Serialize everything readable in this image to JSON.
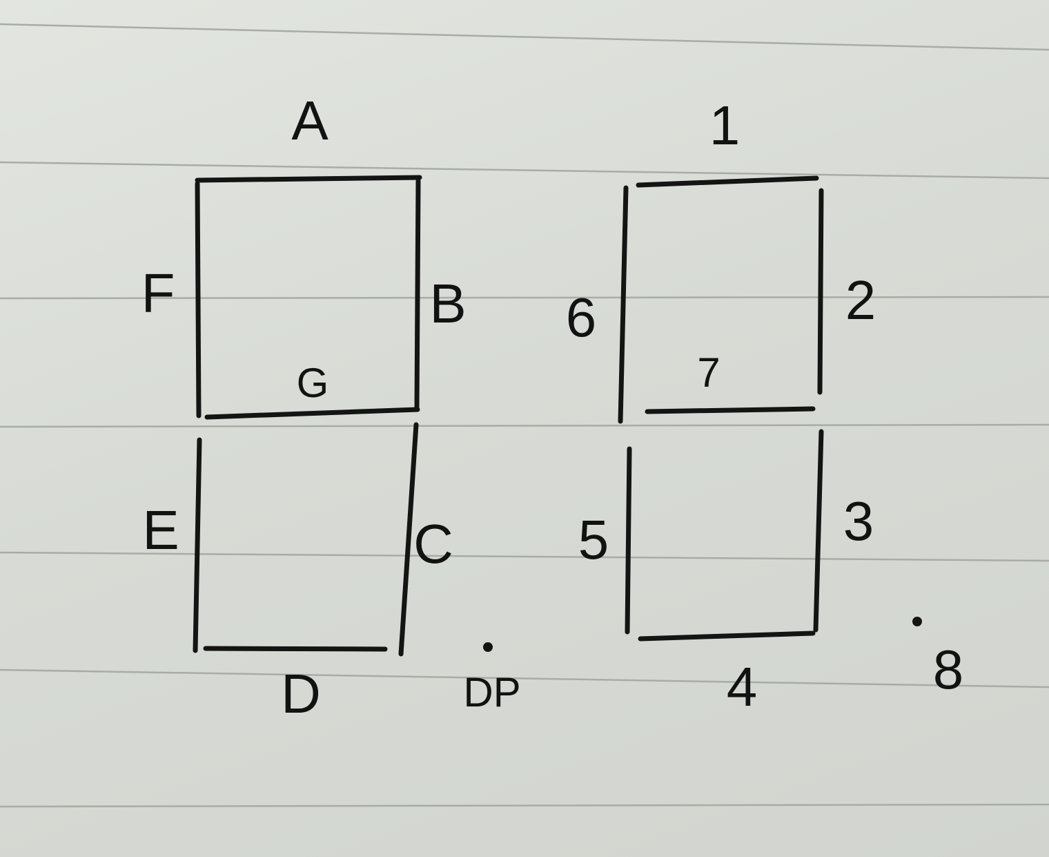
{
  "diagrams": [
    {
      "segment_labels": {
        "a": "A",
        "b": "B",
        "c": "C",
        "d": "D",
        "e": "E",
        "f": "F",
        "g": "G"
      },
      "decimal_point_label": "DP"
    },
    {
      "segment_labels": {
        "a": "1",
        "b": "2",
        "c": "3",
        "d": "4",
        "e": "5",
        "f": "6",
        "g": "7"
      },
      "decimal_point_label": "8"
    }
  ],
  "colors": {
    "ink": "#141414",
    "paper": "#dfe2dc",
    "ruled_line": "#a9aca6"
  }
}
